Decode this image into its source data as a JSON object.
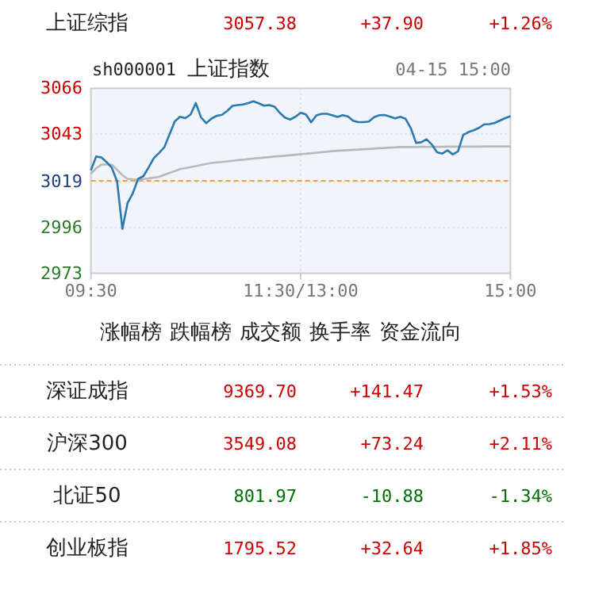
{
  "chart_data": [
    {
      "type": "other",
      "annotations": [
        "上证综指",
        "3057.38",
        "+37.90",
        "+1.26%"
      ],
      "colors": [
        "#cc0000"
      ]
    },
    {
      "type": "line",
      "title": "上证指数",
      "subtitle": "04-15 15:00",
      "annotations": [
        "sh000001"
      ],
      "categories": [
        "09:30",
        null,
        null,
        null,
        null,
        null,
        null,
        null,
        null,
        null,
        null,
        null,
        null,
        null,
        null,
        null,
        null,
        null,
        null,
        null,
        null,
        null,
        null,
        null,
        null,
        null,
        null,
        null,
        null,
        null,
        null,
        null,
        null,
        null,
        null,
        null,
        null,
        null,
        null,
        null,
        "11:30/13:00",
        null,
        null,
        null,
        null,
        null,
        null,
        null,
        null,
        null,
        null,
        null,
        null,
        null,
        null,
        null,
        null,
        null,
        null,
        null,
        null,
        null,
        null,
        null,
        null,
        null,
        null,
        null,
        null,
        null,
        null,
        null,
        null,
        null,
        null,
        null,
        null,
        null,
        null,
        null,
        "15:00"
      ],
      "ylim": [
        2973,
        3066
      ],
      "yticks": [
        2973,
        2996,
        3019,
        3043,
        3066
      ],
      "grid": true,
      "ref_lines": [
        {
          "axis": "y",
          "value": 3019.5,
          "color": "#f0a040",
          "line_style": "dashed"
        }
      ],
      "series": [
        {
          "color": "#2a7ab0",
          "values": [
            3024.8,
            3031.7,
            3031.3,
            3028.9,
            3026.0,
            3019.2,
            2995.3,
            3008.4,
            3013.3,
            3020.5,
            3021.8,
            3026.2,
            3030.9,
            3033.5,
            3036.4,
            3042.9,
            3049.4,
            3051.7,
            3051.0,
            3052.8,
            3058.6,
            3051.4,
            3048.5,
            3050.8,
            3052.2,
            3052.7,
            3054.7,
            3057.2,
            3057.6,
            3057.9,
            3058.6,
            3059.5,
            3058.5,
            3057.3,
            3057.6,
            3056.8,
            3053.7,
            3051.3,
            3050.3,
            3051.7,
            3053.7,
            3052.9,
            3048.9,
            3052.4,
            3053.2,
            3053.2,
            3052.5,
            3051.6,
            3052.5,
            3051.9,
            3049.7,
            3049.0,
            3049.0,
            3049.3,
            3051.5,
            3052.5,
            3052.6,
            3051.8,
            3050.9,
            3051.7,
            3050.7,
            3046.0,
            3038.6,
            3038.9,
            3040.4,
            3037.8,
            3033.9,
            3033.2,
            3034.8,
            3032.8,
            3034.3,
            3042.6,
            3044.0,
            3044.9,
            3046.1,
            3047.9,
            3048.0,
            3048.6,
            3049.8,
            3051.0,
            3052.0
          ]
        },
        {
          "color": "#b9b9b9",
          "values": [
            3023,
            3025.8,
            3027.6,
            3027.8,
            3027.6,
            3025,
            3022.3,
            3020.5,
            3020.2,
            3020,
            3020.4,
            3020.7,
            3021.1,
            3021.5,
            3022.5,
            3023.5,
            3024.4,
            3025.4,
            3025.9,
            3026.4,
            3026.9,
            3027.5,
            3028,
            3028.5,
            3028.8,
            3029,
            3029.3,
            3029.6,
            3029.9,
            3030.1,
            3030.4,
            3030.7,
            3030.9,
            3031.2,
            3031.4,
            3031.7,
            3031.9,
            3032.1,
            3032.4,
            3032.6,
            3032.9,
            3033.1,
            3033.4,
            3033.6,
            3033.9,
            3034.1,
            3034.4,
            3034.6,
            3034.8,
            3034.9,
            3035.1,
            3035.2,
            3035.4,
            3035.5,
            3035.7,
            3035.9,
            3036,
            3036.2,
            3036.3,
            3036.5,
            3036.5,
            3036.5,
            3036.5,
            3036.6,
            3036.6,
            3036.6,
            3036.6,
            3036.6,
            3036.7,
            3036.7,
            3036.7,
            3036.7,
            3036.7,
            3036.7,
            3036.7,
            3036.8,
            3036.8,
            3036.8,
            3036.8,
            3036.8,
            3036.8
          ]
        }
      ]
    },
    {
      "type": "other",
      "annotations": [
        "涨幅榜",
        "跌幅榜",
        "成交额",
        "换手率",
        "资金流向"
      ]
    },
    {
      "type": "other",
      "annotations": [
        "深证成指",
        "9369.70",
        "+141.47",
        "+1.53%",
        "沪深300",
        "3549.08",
        "+73.24",
        "+2.11%",
        "北证50",
        "801.97",
        "-10.88",
        "-1.34%",
        "创业板指",
        "1795.52",
        "+32.64",
        "+1.85%"
      ],
      "colors": [
        "#cc0000",
        "#cc0000",
        "#007000",
        "#cc0000"
      ]
    }
  ]
}
